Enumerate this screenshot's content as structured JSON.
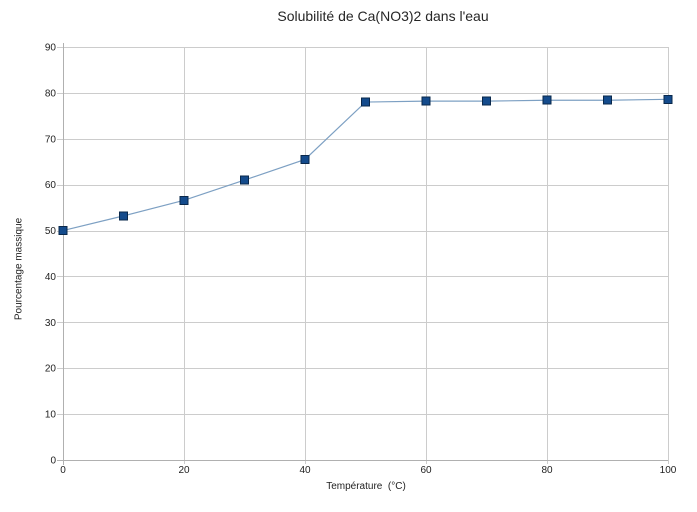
{
  "chart_data": {
    "type": "line",
    "title": "Solubilité de Ca(NO3)2 dans l'eau",
    "xlabel": "Température  (°C)",
    "ylabel": "Pourcentage massique",
    "x": [
      0,
      10,
      20,
      30,
      40,
      50,
      60,
      70,
      80,
      90,
      100
    ],
    "series": [
      {
        "name": "Solubilité de Ca(NO3)2",
        "values": [
          50,
          53.2,
          56.6,
          61,
          65.5,
          78,
          78.2,
          78.2,
          78.4,
          78.4,
          78.6
        ]
      }
    ],
    "xlim": [
      0,
      100
    ],
    "ylim": [
      0,
      90
    ],
    "xticks": [
      0,
      20,
      40,
      60,
      80,
      100
    ],
    "yticks": [
      0,
      10,
      20,
      30,
      40,
      50,
      60,
      70,
      80,
      90
    ],
    "grid": true,
    "legend_position": "none",
    "marker": "square",
    "colors": {
      "marker_fill": "#144b8c",
      "marker_border": "#0a284b",
      "line": "#7da0c3",
      "grid": "#cccccc",
      "axis": "#b0b0b0",
      "text": "#1f1f1f",
      "background": "#ffffff"
    }
  }
}
